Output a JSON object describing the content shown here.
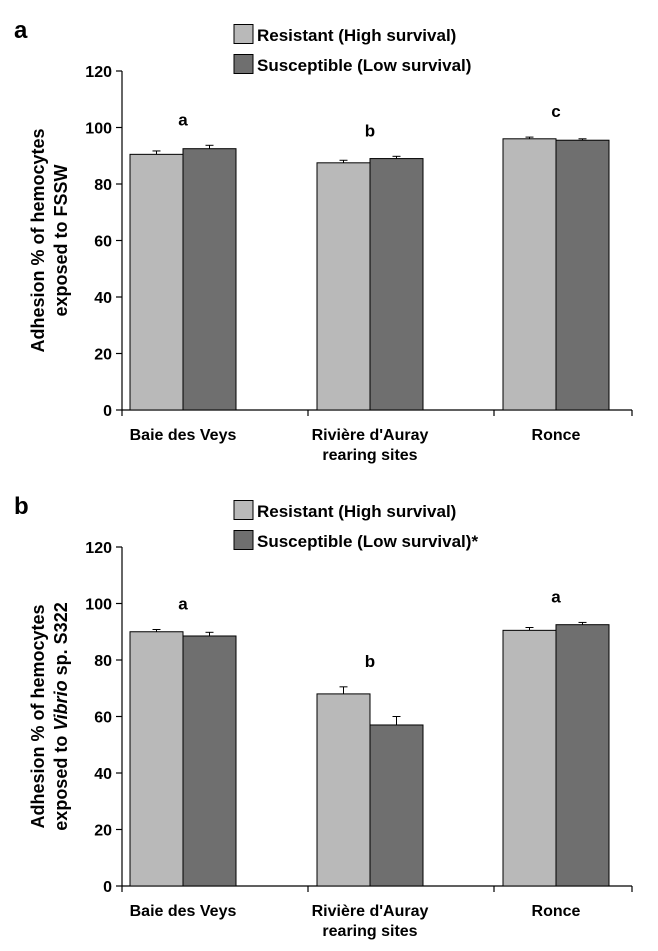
{
  "chart_data": [
    {
      "type": "bar",
      "panel_letter": "a",
      "ylabel_lines": [
        "Adhesion % of hemocytes",
        "exposed to FSSW"
      ],
      "ylim": [
        0,
        120
      ],
      "yticks": [
        0,
        20,
        40,
        60,
        80,
        100,
        120
      ],
      "categories": [
        [
          "Baie des Veys"
        ],
        [
          "Rivière d'Auray",
          "rearing sites"
        ],
        [
          "Ronce"
        ]
      ],
      "series": [
        {
          "name": "Resistant (High survival)",
          "values": [
            90.5,
            87.5,
            96
          ],
          "errors": [
            1.2,
            0.9,
            0.6
          ],
          "color": "#b9b9b9"
        },
        {
          "name": "Susceptible (Low survival)",
          "values": [
            92.5,
            89,
            95.5
          ],
          "errors": [
            1.2,
            0.8,
            0.5
          ],
          "color": "#6f6f6f"
        }
      ],
      "group_letters": [
        "a",
        "b",
        "c"
      ],
      "legend_position": "top-center",
      "grid": false
    },
    {
      "type": "bar",
      "panel_letter": "b",
      "ylabel_lines": [
        "Adhesion % of hemocytes",
        "exposed to Vibrio sp. S322"
      ],
      "ylim": [
        0,
        120
      ],
      "yticks": [
        0,
        20,
        40,
        60,
        80,
        100,
        120
      ],
      "categories": [
        [
          "Baie des Veys"
        ],
        [
          "Rivière d'Auray",
          "rearing sites"
        ],
        [
          "Ronce"
        ]
      ],
      "series": [
        {
          "name": "Resistant (High survival)",
          "values": [
            90,
            68,
            90.5
          ],
          "errors": [
            0.8,
            2.5,
            1.0
          ],
          "color": "#b9b9b9"
        },
        {
          "name": "Susceptible (Low survival)*",
          "values": [
            88.5,
            57,
            92.5
          ],
          "errors": [
            1.3,
            3.0,
            0.8
          ],
          "color": "#6f6f6f"
        }
      ],
      "group_letters": [
        "a",
        "b",
        "a"
      ],
      "legend_position": "top-center",
      "grid": false
    }
  ]
}
